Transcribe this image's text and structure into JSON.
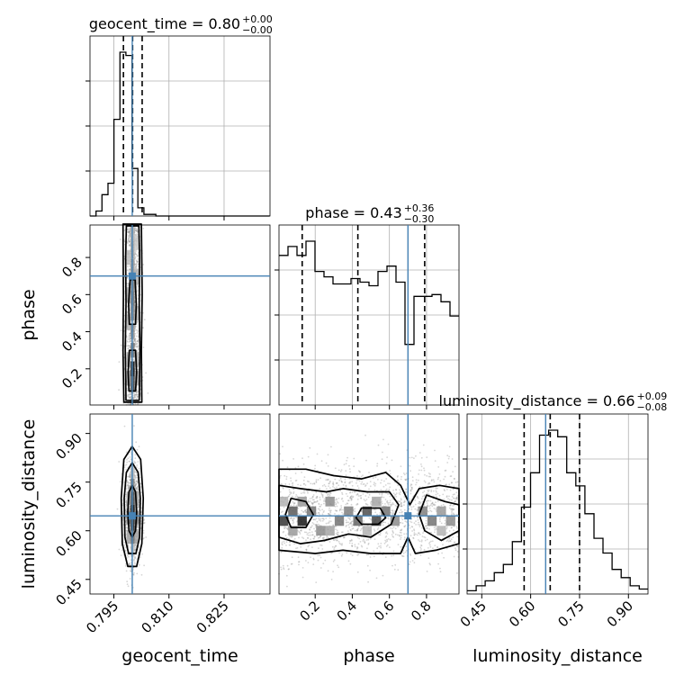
{
  "chart_data": {
    "type": "corner",
    "parameters": [
      "geocent_time",
      "phase",
      "luminosity_distance"
    ],
    "truths": {
      "geocent_time": 0.8,
      "phase": 0.7,
      "luminosity_distance": 0.646
    },
    "titles": [
      {
        "param": "geocent_time",
        "text": "geocent_time = 0.80",
        "plus": "+0.00",
        "minus": "−0.00"
      },
      {
        "param": "phase",
        "text": "phase = 0.43",
        "plus": "+0.36",
        "minus": "−0.30"
      },
      {
        "param": "luminosity_distance",
        "text": "luminosity_distance = 0.66",
        "plus": "+0.09",
        "minus": "−0.08"
      }
    ],
    "ranges": {
      "geocent_time": [
        0.7885,
        0.8375
      ],
      "phase": [
        0.005,
        0.975
      ],
      "luminosity_distance": [
        0.405,
        0.96
      ]
    },
    "ticks": {
      "geocent_time": [
        "0.795",
        "0.810",
        "0.825"
      ],
      "phase_x": [
        "0.2",
        "0.4",
        "0.6",
        "0.8"
      ],
      "phase_y": [
        "0.2",
        "0.4",
        "0.6",
        "0.8"
      ],
      "luminosity_distance": [
        "0.45",
        "0.60",
        "0.75",
        "0.90"
      ]
    },
    "histograms": {
      "geocent_time": {
        "x_start": 0.7885,
        "bin_width": 0.00163,
        "counts": [
          0,
          0.03,
          0.13,
          0.2,
          0.59,
          1.0,
          0.98,
          0.29,
          0.05,
          0.01,
          0.01,
          0,
          0,
          0,
          0,
          0,
          0,
          0,
          0,
          0,
          0,
          0,
          0,
          0,
          0,
          0,
          0,
          0,
          0,
          0
        ],
        "quantiles": [
          0.7976,
          0.8001,
          0.8027
        ]
      },
      "phase": {
        "x_start": 0.005,
        "bin_width": 0.0485,
        "counts": [
          0.84,
          0.89,
          0.84,
          0.92,
          0.75,
          0.72,
          0.68,
          0.68,
          0.71,
          0.69,
          0.67,
          0.75,
          0.78,
          0.69,
          0.34,
          0.61,
          0.61,
          0.62,
          0.58,
          0.5
        ],
        "quantiles": [
          0.13,
          0.43,
          0.79
        ]
      },
      "luminosity_distance": {
        "x_start": 0.405,
        "bin_width": 0.0278,
        "counts": [
          0.02,
          0.05,
          0.08,
          0.13,
          0.18,
          0.32,
          0.53,
          0.74,
          0.97,
          1.0,
          0.96,
          0.74,
          0.66,
          0.49,
          0.34,
          0.25,
          0.15,
          0.1,
          0.05,
          0.03
        ],
        "quantiles": [
          0.58,
          0.66,
          0.75
        ]
      }
    },
    "contours": {
      "geocent_time_phase": [
        [
          [
            0.7977,
            0.02
          ],
          [
            0.7975,
            0.3
          ],
          [
            0.7976,
            0.6
          ],
          [
            0.7975,
            0.98
          ],
          [
            0.8025,
            0.98
          ],
          [
            0.8027,
            0.6
          ],
          [
            0.8025,
            0.3
          ],
          [
            0.8026,
            0.02
          ]
        ],
        [
          [
            0.7983,
            0.03
          ],
          [
            0.7981,
            0.3
          ],
          [
            0.7983,
            0.55
          ],
          [
            0.7982,
            0.8
          ],
          [
            0.7984,
            0.97
          ],
          [
            0.8018,
            0.97
          ],
          [
            0.802,
            0.8
          ],
          [
            0.8019,
            0.55
          ],
          [
            0.8021,
            0.3
          ],
          [
            0.8019,
            0.03
          ]
        ],
        [
          [
            0.7992,
            0.44
          ],
          [
            0.799,
            0.55
          ],
          [
            0.7994,
            0.68
          ],
          [
            0.8008,
            0.68
          ],
          [
            0.8011,
            0.55
          ],
          [
            0.8009,
            0.44
          ]
        ],
        [
          [
            0.7991,
            0.08
          ],
          [
            0.7989,
            0.18
          ],
          [
            0.7992,
            0.3
          ],
          [
            0.8009,
            0.3
          ],
          [
            0.8012,
            0.18
          ],
          [
            0.8009,
            0.08
          ]
        ]
      ],
      "geocent_time_luminosity_distance": [
        [
          [
            0.8,
            0.86
          ],
          [
            0.8023,
            0.82
          ],
          [
            0.803,
            0.7
          ],
          [
            0.8026,
            0.56
          ],
          [
            0.8012,
            0.49
          ],
          [
            0.7988,
            0.49
          ],
          [
            0.7973,
            0.56
          ],
          [
            0.797,
            0.7
          ],
          [
            0.7977,
            0.82
          ]
        ],
        [
          [
            0.8,
            0.81
          ],
          [
            0.8016,
            0.78
          ],
          [
            0.8022,
            0.7
          ],
          [
            0.802,
            0.58
          ],
          [
            0.801,
            0.53
          ],
          [
            0.799,
            0.53
          ],
          [
            0.798,
            0.58
          ],
          [
            0.7978,
            0.7
          ],
          [
            0.7984,
            0.78
          ]
        ],
        [
          [
            0.8,
            0.74
          ],
          [
            0.8009,
            0.72
          ],
          [
            0.8012,
            0.66
          ],
          [
            0.8009,
            0.6
          ],
          [
            0.8,
            0.58
          ],
          [
            0.7991,
            0.6
          ],
          [
            0.7988,
            0.66
          ],
          [
            0.7991,
            0.72
          ]
        ]
      ],
      "phase_luminosity_distance": [
        [
          [
            0.005,
            0.79
          ],
          [
            0.15,
            0.79
          ],
          [
            0.3,
            0.77
          ],
          [
            0.45,
            0.76
          ],
          [
            0.58,
            0.78
          ],
          [
            0.66,
            0.74
          ],
          [
            0.71,
            0.68
          ],
          [
            0.76,
            0.73
          ],
          [
            0.87,
            0.74
          ],
          [
            0.975,
            0.73
          ],
          [
            0.975,
            0.56
          ],
          [
            0.85,
            0.54
          ],
          [
            0.74,
            0.53
          ],
          [
            0.7,
            0.58
          ],
          [
            0.66,
            0.53
          ],
          [
            0.5,
            0.53
          ],
          [
            0.35,
            0.54
          ],
          [
            0.2,
            0.53
          ],
          [
            0.005,
            0.54
          ]
        ],
        [
          [
            0.005,
            0.74
          ],
          [
            0.12,
            0.73
          ],
          [
            0.26,
            0.72
          ],
          [
            0.35,
            0.73
          ],
          [
            0.48,
            0.72
          ],
          [
            0.6,
            0.72
          ],
          [
            0.65,
            0.68
          ],
          [
            0.61,
            0.62
          ],
          [
            0.5,
            0.58
          ],
          [
            0.38,
            0.59
          ],
          [
            0.25,
            0.57
          ],
          [
            0.12,
            0.56
          ],
          [
            0.005,
            0.58
          ]
        ],
        [
          [
            0.8,
            0.71
          ],
          [
            0.9,
            0.69
          ],
          [
            0.975,
            0.68
          ],
          [
            0.975,
            0.6
          ],
          [
            0.88,
            0.57
          ],
          [
            0.79,
            0.6
          ],
          [
            0.76,
            0.65
          ]
        ],
        [
          [
            0.07,
            0.7
          ],
          [
            0.15,
            0.69
          ],
          [
            0.19,
            0.65
          ],
          [
            0.15,
            0.61
          ],
          [
            0.07,
            0.61
          ],
          [
            0.04,
            0.65
          ]
        ],
        [
          [
            0.45,
            0.67
          ],
          [
            0.55,
            0.67
          ],
          [
            0.58,
            0.64
          ],
          [
            0.54,
            0.62
          ],
          [
            0.45,
            0.62
          ],
          [
            0.42,
            0.64
          ]
        ]
      ]
    },
    "density_cells": {
      "geocent_time_phase": [
        [
          0.8001,
          0.2,
          0.95
        ],
        [
          0.8001,
          0.12,
          0.75
        ],
        [
          0.8001,
          0.3,
          0.55
        ],
        [
          0.8001,
          0.4,
          0.45
        ],
        [
          0.8001,
          0.5,
          0.5
        ],
        [
          0.8001,
          0.58,
          0.55
        ],
        [
          0.8001,
          0.66,
          0.5
        ],
        [
          0.8001,
          0.75,
          0.4
        ],
        [
          0.8001,
          0.85,
          0.35
        ],
        [
          0.8001,
          0.93,
          0.3
        ],
        [
          0.799,
          0.15,
          0.4
        ],
        [
          0.799,
          0.25,
          0.35
        ],
        [
          0.799,
          0.45,
          0.3
        ],
        [
          0.799,
          0.6,
          0.35
        ],
        [
          0.799,
          0.8,
          0.25
        ],
        [
          0.8012,
          0.15,
          0.35
        ],
        [
          0.8012,
          0.25,
          0.3
        ],
        [
          0.8012,
          0.5,
          0.3
        ],
        [
          0.8012,
          0.7,
          0.3
        ],
        [
          0.8012,
          0.88,
          0.2
        ]
      ],
      "geocent_time_luminosity_distance": [
        [
          0.8001,
          0.66,
          0.9
        ],
        [
          0.8001,
          0.62,
          0.8
        ],
        [
          0.8001,
          0.7,
          0.7
        ],
        [
          0.8001,
          0.58,
          0.55
        ],
        [
          0.8001,
          0.74,
          0.5
        ],
        [
          0.799,
          0.64,
          0.55
        ],
        [
          0.8012,
          0.64,
          0.5
        ],
        [
          0.799,
          0.7,
          0.35
        ],
        [
          0.8012,
          0.7,
          0.35
        ],
        [
          0.799,
          0.58,
          0.35
        ],
        [
          0.8012,
          0.58,
          0.35
        ],
        [
          0.8001,
          0.78,
          0.25
        ],
        [
          0.8001,
          0.54,
          0.25
        ]
      ],
      "phase_luminosity_distance": [
        [
          0.03,
          0.63,
          0.8
        ],
        [
          0.08,
          0.66,
          0.65
        ],
        [
          0.13,
          0.63,
          0.9
        ],
        [
          0.18,
          0.66,
          0.55
        ],
        [
          0.23,
          0.6,
          0.45
        ],
        [
          0.28,
          0.69,
          0.45
        ],
        [
          0.33,
          0.63,
          0.55
        ],
        [
          0.38,
          0.66,
          0.5
        ],
        [
          0.43,
          0.63,
          0.6
        ],
        [
          0.48,
          0.66,
          0.7
        ],
        [
          0.53,
          0.63,
          0.75
        ],
        [
          0.58,
          0.66,
          0.55
        ],
        [
          0.63,
          0.63,
          0.45
        ],
        [
          0.78,
          0.66,
          0.5
        ],
        [
          0.83,
          0.63,
          0.55
        ],
        [
          0.88,
          0.66,
          0.4
        ],
        [
          0.93,
          0.63,
          0.45
        ],
        [
          0.08,
          0.6,
          0.4
        ],
        [
          0.13,
          0.69,
          0.4
        ],
        [
          0.28,
          0.6,
          0.35
        ],
        [
          0.53,
          0.69,
          0.35
        ],
        [
          0.48,
          0.6,
          0.3
        ],
        [
          0.03,
          0.69,
          0.3
        ],
        [
          0.88,
          0.6,
          0.3
        ]
      ]
    }
  }
}
